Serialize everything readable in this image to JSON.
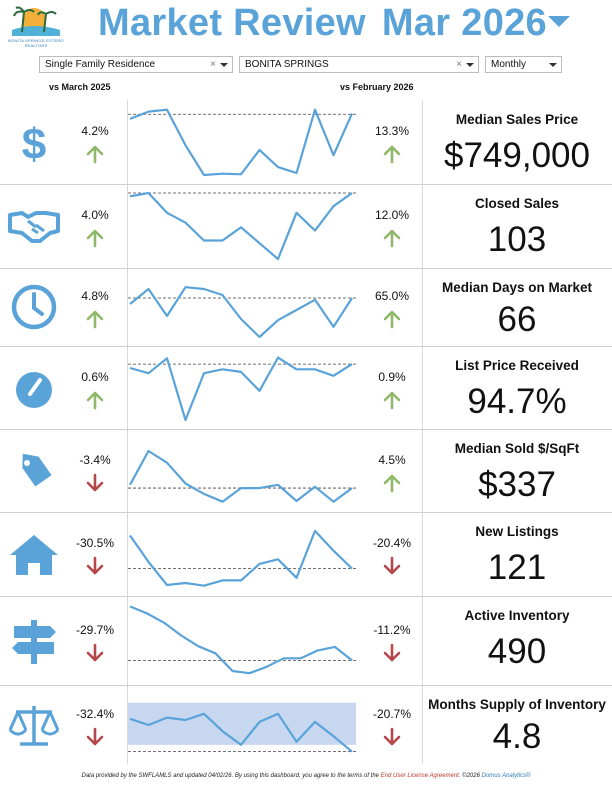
{
  "header": {
    "title": "Market Review",
    "period": "Mar 2026",
    "logo_text": "BONITA SPRINGS-ESTERO REALTORS"
  },
  "filters": {
    "property_type": "Single Family Residence",
    "area": "BONITA SPRINGS",
    "frequency": "Monthly",
    "clear_symbol": "×"
  },
  "compare": {
    "left": "vs March 2025",
    "right": "vs February 2026"
  },
  "colors": {
    "accent": "#5aa3d9",
    "up": "#8fb86a",
    "down": "#b5474b",
    "spark": "#5aa3d9"
  },
  "rows": [
    {
      "icon": "dollar-icon",
      "yoy": "4.2%",
      "yoy_dir": "up",
      "mom": "13.3%",
      "mom_dir": "up",
      "label": "Median Sales Price",
      "value": "$749,000",
      "spark": [
        0.85,
        0.96,
        0.99,
        0.45,
        0.0,
        0.02,
        0.01,
        0.38,
        0.12,
        0.03,
        0.99,
        0.3,
        0.93
      ],
      "ref": 0.92
    },
    {
      "icon": "handshake-icon",
      "yoy": "4.0%",
      "yoy_dir": "up",
      "mom": "12.0%",
      "mom_dir": "up",
      "label": "Closed Sales",
      "value": "103",
      "spark": [
        0.95,
        1.0,
        0.7,
        0.55,
        0.28,
        0.28,
        0.48,
        0.24,
        0.0,
        0.7,
        0.43,
        0.8,
        1.0
      ],
      "ref": 1.0
    },
    {
      "icon": "clock-icon",
      "yoy": "4.8%",
      "yoy_dir": "up",
      "mom": "65.0%",
      "mom_dir": "up",
      "label": "Median Days on Market",
      "value": "66",
      "spark": [
        0.55,
        0.8,
        0.35,
        0.83,
        0.8,
        0.7,
        0.3,
        0.0,
        0.28,
        0.45,
        0.62,
        0.17,
        0.65
      ],
      "ref": 0.65
    },
    {
      "icon": "gauge-icon",
      "yoy": "0.6%",
      "yoy_dir": "up",
      "mom": "0.9%",
      "mom_dir": "up",
      "label": "List Price Received",
      "value": "94.7%",
      "spark": [
        0.8,
        0.72,
        0.95,
        0.0,
        0.72,
        0.78,
        0.74,
        0.45,
        0.96,
        0.78,
        0.78,
        0.68,
        0.86
      ],
      "ref": 0.86
    },
    {
      "icon": "tag-icon",
      "yoy": "-3.4%",
      "yoy_dir": "down",
      "mom": "4.5%",
      "mom_dir": "up",
      "label": "Median Sold $/SqFt",
      "value": "$337",
      "spark": [
        0.28,
        0.8,
        0.62,
        0.3,
        0.14,
        0.02,
        0.23,
        0.23,
        0.28,
        0.03,
        0.25,
        0.02,
        0.23
      ],
      "ref": 0.23
    },
    {
      "icon": "house-icon",
      "yoy": "-30.5%",
      "yoy_dir": "down",
      "mom": "-20.4%",
      "mom_dir": "down",
      "label": "New Listings",
      "value": "121",
      "spark": [
        0.78,
        0.38,
        0.03,
        0.06,
        0.02,
        0.1,
        0.1,
        0.35,
        0.42,
        0.14,
        0.85,
        0.55,
        0.28
      ],
      "ref": 0.28
    },
    {
      "icon": "signpost-icon",
      "yoy": "-29.7%",
      "yoy_dir": "down",
      "mom": "-11.2%",
      "mom_dir": "down",
      "label": "Active Inventory",
      "value": "490",
      "spark": [
        0.98,
        0.88,
        0.75,
        0.57,
        0.42,
        0.32,
        0.07,
        0.04,
        0.13,
        0.25,
        0.25,
        0.36,
        0.41,
        0.22
      ],
      "ref": 0.22
    },
    {
      "icon": "scales-icon",
      "yoy": "-32.4%",
      "yoy_dir": "down",
      "mom": "-20.7%",
      "mom_dir": "down",
      "label": "Months Supply of Inventory",
      "value": "4.8",
      "spark": [
        0.6,
        0.5,
        0.62,
        0.58,
        0.68,
        0.4,
        0.18,
        0.55,
        0.68,
        0.23,
        0.55,
        0.32,
        0.07
      ],
      "ref": 0.07,
      "band": [
        0.18,
        0.86
      ]
    }
  ],
  "footer": {
    "text_before": "Data provided by the SWFLAMLS and updated 04/02/26.  By using this dashboard, you agree to the terms of the",
    "link": "End User License Agreement.",
    "copyright": "©2026",
    "brand": "Domus Analytics®"
  }
}
